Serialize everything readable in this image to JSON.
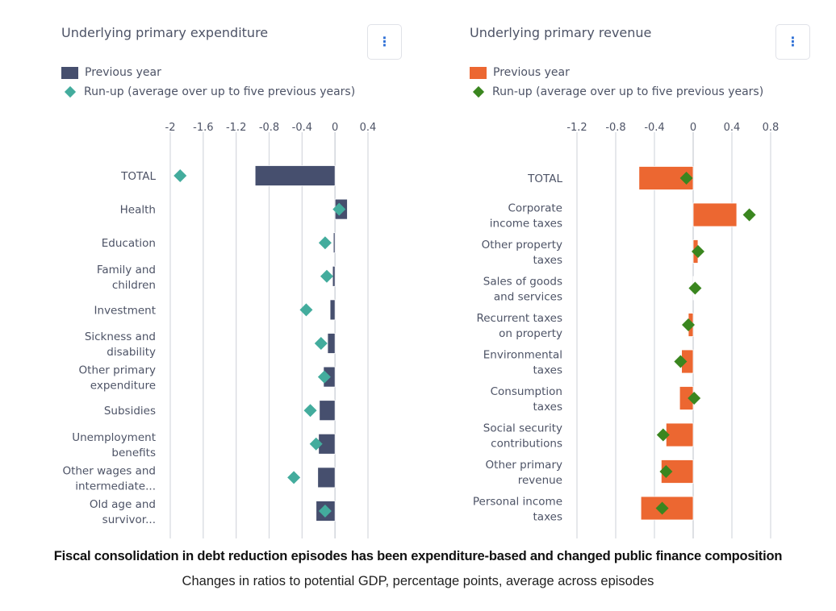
{
  "colors": {
    "expenditure_bar": "#464f6e",
    "expenditure_marker": "#43ac9d",
    "revenue_bar": "#ec6731",
    "revenue_marker": "#3a861f",
    "grid": "#d5d8de",
    "text": "#4d5366",
    "menu_dots": "#2d6fd6"
  },
  "caption": {
    "title": "Fiscal consolidation in debt reduction episodes has been expenditure-based and changed public finance composition",
    "subtitle": "Changes in ratios to potential GDP, percentage points, average across episodes"
  },
  "panels": [
    {
      "title": "Underlying primary expenditure",
      "menu_icon": "more-vertical-icon",
      "menu_glyph": "⋮",
      "legend": [
        {
          "label": "Previous year",
          "marker": "rect"
        },
        {
          "label": "Run-up (average over up to five previous years)",
          "marker": "diamond"
        }
      ]
    },
    {
      "title": "Underlying primary revenue",
      "menu_icon": "more-vertical-icon",
      "menu_glyph": "⋮",
      "legend": [
        {
          "label": "Previous year",
          "marker": "rect"
        },
        {
          "label": "Run-up (average over up to five previous years)",
          "marker": "diamond"
        }
      ]
    }
  ],
  "chart_data": [
    {
      "type": "bar",
      "orientation": "horizontal",
      "title": "Underlying primary expenditure",
      "xlabel": "",
      "ylabel": "",
      "xlim": [
        -2,
        0.4
      ],
      "xticks": [
        -2,
        -1.6,
        -1.2,
        -0.8,
        -0.4,
        0,
        0.4
      ],
      "xtick_labels": [
        "-2",
        "-1.6",
        "-1.2",
        "-0.8",
        "-0.4",
        "0",
        "0.4"
      ],
      "grid": true,
      "legend_position": "top-left",
      "categories": [
        [
          "TOTAL"
        ],
        [
          "Health"
        ],
        [
          "Education"
        ],
        [
          "Family and",
          "children"
        ],
        [
          "Investment"
        ],
        [
          "Sickness and",
          "disability"
        ],
        [
          "Other primary",
          "expenditure"
        ],
        [
          "Subsidies"
        ],
        [
          "Unemployment",
          "benefits"
        ],
        [
          "Other wages and",
          "intermediate..."
        ],
        [
          "Old age and",
          "survivor..."
        ]
      ],
      "series": [
        {
          "name": "Previous year",
          "kind": "bar",
          "values": [
            -0.97,
            0.15,
            -0.02,
            -0.03,
            -0.06,
            -0.09,
            -0.14,
            -0.19,
            -0.2,
            -0.21,
            -0.23
          ]
        },
        {
          "name": "Run-up (average over up to five previous years)",
          "kind": "diamond",
          "values": [
            -1.88,
            0.05,
            -0.12,
            -0.1,
            -0.35,
            -0.17,
            -0.13,
            -0.3,
            -0.23,
            -0.5,
            -0.12
          ]
        }
      ]
    },
    {
      "type": "bar",
      "orientation": "horizontal",
      "title": "Underlying primary revenue",
      "xlabel": "",
      "ylabel": "",
      "xlim": [
        -1.2,
        0.8
      ],
      "xticks": [
        -1.2,
        -0.8,
        -0.4,
        0,
        0.4,
        0.8
      ],
      "xtick_labels": [
        "-1.2",
        "-0.8",
        "-0.4",
        "0",
        "0.4",
        "0.8"
      ],
      "grid": true,
      "legend_position": "top-left",
      "categories": [
        [
          "TOTAL"
        ],
        [
          "Corporate",
          "income taxes"
        ],
        [
          "Other property",
          "taxes"
        ],
        [
          "Sales of goods",
          "and services"
        ],
        [
          "Recurrent taxes",
          "on property"
        ],
        [
          "Environmental",
          "taxes"
        ],
        [
          "Consumption",
          "taxes"
        ],
        [
          "Social security",
          "contributions"
        ],
        [
          "Other primary",
          "revenue"
        ],
        [
          "Personal income",
          "taxes"
        ]
      ],
      "series": [
        {
          "name": "Previous year",
          "kind": "bar",
          "values": [
            -0.56,
            0.45,
            0.05,
            0.005,
            -0.05,
            -0.12,
            -0.14,
            -0.28,
            -0.33,
            -0.54
          ]
        },
        {
          "name": "Run-up (average over up to five previous years)",
          "kind": "diamond",
          "values": [
            -0.07,
            0.58,
            0.05,
            0.02,
            -0.05,
            -0.13,
            0.01,
            -0.31,
            -0.28,
            -0.32
          ]
        }
      ]
    }
  ]
}
